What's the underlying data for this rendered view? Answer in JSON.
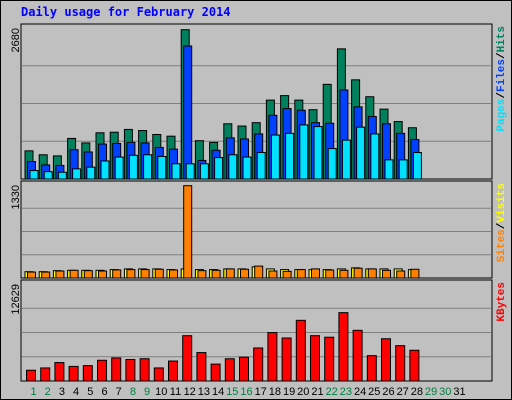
{
  "chart_data": {
    "type": "bar",
    "title": "Daily usage for February 2014",
    "x": [
      "1",
      "2",
      "3",
      "4",
      "5",
      "6",
      "7",
      "8",
      "9",
      "10",
      "11",
      "12",
      "13",
      "14",
      "15",
      "16",
      "17",
      "18",
      "19",
      "20",
      "21",
      "22",
      "23",
      "24",
      "25",
      "26",
      "27",
      "28",
      "29",
      "30",
      "31"
    ],
    "weekend_days": [
      1,
      2,
      8,
      9,
      15,
      16,
      22,
      23,
      29,
      30
    ],
    "colors": {
      "hits": "#00805c",
      "files": "#0040ff",
      "pages": "#00e0ff",
      "visits": "#ffff00",
      "sites": "#ff8000",
      "kbytes": "#ff0000",
      "weekday_label": "#000000",
      "weekend_label": "#008040",
      "title": "#0000ff"
    },
    "panels": [
      {
        "id": "hits-files-pages",
        "ymax": 2680,
        "ymax_label": "2680",
        "right_label": [
          {
            "text": "Pages",
            "color": "#00e0ff"
          },
          {
            "text": "/",
            "color": "#000000"
          },
          {
            "text": "Files",
            "color": "#0040ff"
          },
          {
            "text": "/",
            "color": "#000000"
          },
          {
            "text": "Hits",
            "color": "#00805c"
          }
        ],
        "series": [
          {
            "key": "hits",
            "values": [
              500,
              430,
              410,
              720,
              640,
              820,
              830,
              880,
              860,
              790,
              760,
              2650,
              680,
              650,
              980,
              940,
              1000,
              1400,
              1480,
              1400,
              1230,
              1680,
              2310,
              1760,
              1460,
              1240,
              1020,
              910
            ]
          },
          {
            "key": "files",
            "values": [
              310,
              250,
              240,
              520,
              480,
              620,
              630,
              650,
              640,
              560,
              530,
              2360,
              330,
              510,
              730,
              710,
              800,
              1130,
              1250,
              1220,
              1000,
              990,
              1580,
              1280,
              1110,
              980,
              810,
              700
            ]
          },
          {
            "key": "pages",
            "values": [
              150,
              130,
              120,
              180,
              210,
              320,
              390,
              420,
              430,
              400,
              270,
              270,
              270,
              380,
              430,
              390,
              470,
              780,
              810,
              960,
              930,
              540,
              690,
              920,
              800,
              340,
              340,
              470
            ]
          }
        ]
      },
      {
        "id": "visits-sites",
        "ymax": 1330,
        "ymax_label": "1330",
        "right_label": [
          {
            "text": "Sites",
            "color": "#ff8000"
          },
          {
            "text": "/",
            "color": "#000000"
          },
          {
            "text": "Visits",
            "color": "#ffff00"
          }
        ],
        "series": [
          {
            "key": "visits",
            "values": [
              90,
              90,
              105,
              110,
              110,
              110,
              120,
              130,
              130,
              130,
              120,
              130,
              120,
              120,
              130,
              130,
              160,
              130,
              120,
              120,
              120,
              120,
              130,
              145,
              130,
              130,
              130,
              120
            ]
          },
          {
            "key": "sites",
            "values": [
              85,
              85,
              100,
              110,
              105,
              100,
              115,
              120,
              120,
              125,
              115,
              1320,
              105,
              110,
              130,
              125,
              170,
              100,
              95,
              120,
              130,
              115,
              110,
              140,
              130,
              110,
              100,
              125
            ]
          }
        ]
      },
      {
        "id": "kbytes",
        "ymax": 12629,
        "ymax_label": "12629",
        "right_label": [
          {
            "text": "KBytes",
            "color": "#ff0000"
          }
        ],
        "series": [
          {
            "key": "kbytes",
            "values": [
              1400,
              1700,
              2400,
              1900,
              2000,
              2700,
              3000,
              2800,
              2900,
              1700,
              2600,
              5900,
              3700,
              2200,
              2900,
              3100,
              4300,
              6300,
              5600,
              7900,
              5900,
              5700,
              8900,
              6600,
              3300,
              5500,
              4600,
              4000
            ]
          }
        ]
      }
    ]
  }
}
